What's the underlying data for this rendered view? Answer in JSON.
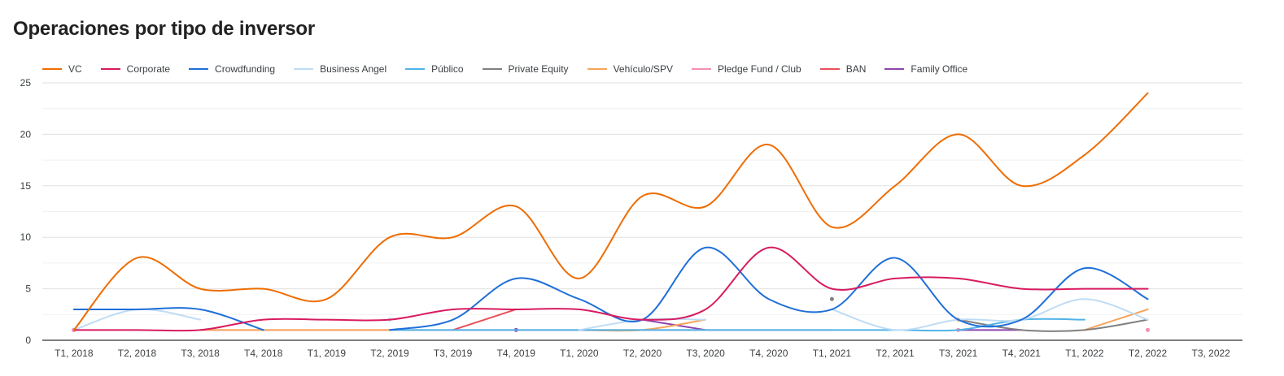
{
  "chart_data": {
    "type": "line",
    "title": "Operaciones por tipo de inversor",
    "xlabel": "",
    "ylabel": "",
    "ylim": [
      0,
      25
    ],
    "yticks": [
      "0",
      "5",
      "10",
      "15",
      "20",
      "25"
    ],
    "grid": true,
    "legend_position": "top-left",
    "categories": [
      "T1, 2018",
      "T2, 2018",
      "T3, 2018",
      "T4, 2018",
      "T1, 2019",
      "T2, 2019",
      "T3, 2019",
      "T4, 2019",
      "T1, 2020",
      "T2, 2020",
      "T3, 2020",
      "T4, 2020",
      "T1, 2021",
      "T2, 2021",
      "T3, 2021",
      "T4, 2021",
      "T1, 2022",
      "T2, 2022",
      "T3, 2022"
    ],
    "series": [
      {
        "name": "VC",
        "color": "#ef6c00",
        "values": [
          1,
          8,
          5,
          5,
          4,
          10,
          10,
          13,
          6,
          14,
          13,
          19,
          11,
          15,
          20,
          15,
          18,
          24,
          null
        ]
      },
      {
        "name": "Corporate",
        "color": "#d81b60",
        "values": [
          1,
          1,
          1,
          2,
          2,
          2,
          3,
          3,
          3,
          2,
          3,
          9,
          5,
          6,
          6,
          5,
          5,
          5,
          null
        ]
      },
      {
        "name": "Crowdfunding",
        "color": "#1e6fd9",
        "values": [
          3,
          3,
          3,
          1,
          null,
          1,
          2,
          6,
          4,
          2,
          9,
          4,
          3,
          8,
          2,
          2,
          7,
          4,
          null
        ]
      },
      {
        "name": "Business Angel",
        "color": "#bfdcf5",
        "values": [
          1,
          3,
          2,
          null,
          null,
          2,
          null,
          null,
          1,
          2,
          2,
          null,
          3,
          1,
          2,
          2,
          4,
          2,
          null
        ]
      },
      {
        "name": "Público",
        "color": "#4fb3e8",
        "values": [
          null,
          null,
          null,
          null,
          null,
          1,
          1,
          1,
          1,
          1,
          1,
          1,
          1,
          1,
          1,
          2,
          2,
          null,
          null
        ]
      },
      {
        "name": "Private Equity",
        "color": "#808080",
        "values": [
          null,
          null,
          null,
          null,
          null,
          null,
          null,
          null,
          null,
          null,
          null,
          null,
          4,
          null,
          2,
          1,
          1,
          2,
          null
        ]
      },
      {
        "name": "Vehículo/SPV",
        "color": "#f6a45b",
        "values": [
          null,
          null,
          1,
          1,
          1,
          1,
          null,
          null,
          1,
          1,
          2,
          null,
          null,
          null,
          2,
          null,
          1,
          3,
          null
        ]
      },
      {
        "name": "Pledge Fund / Club",
        "color": "#f48fb1",
        "values": [
          1,
          null,
          1,
          1,
          1,
          1,
          1,
          1,
          1,
          1,
          1,
          1,
          1,
          null,
          1,
          null,
          null,
          1,
          null
        ]
      },
      {
        "name": "BAN",
        "color": "#e8505b",
        "values": [
          null,
          null,
          null,
          null,
          null,
          null,
          1,
          3,
          null,
          null,
          null,
          null,
          null,
          null,
          null,
          null,
          null,
          null,
          null
        ]
      },
      {
        "name": "Family Office",
        "color": "#8e44ad",
        "values": [
          1,
          null,
          null,
          null,
          null,
          null,
          null,
          1,
          null,
          2,
          1,
          null,
          null,
          null,
          1,
          1,
          null,
          null,
          null
        ]
      }
    ]
  }
}
